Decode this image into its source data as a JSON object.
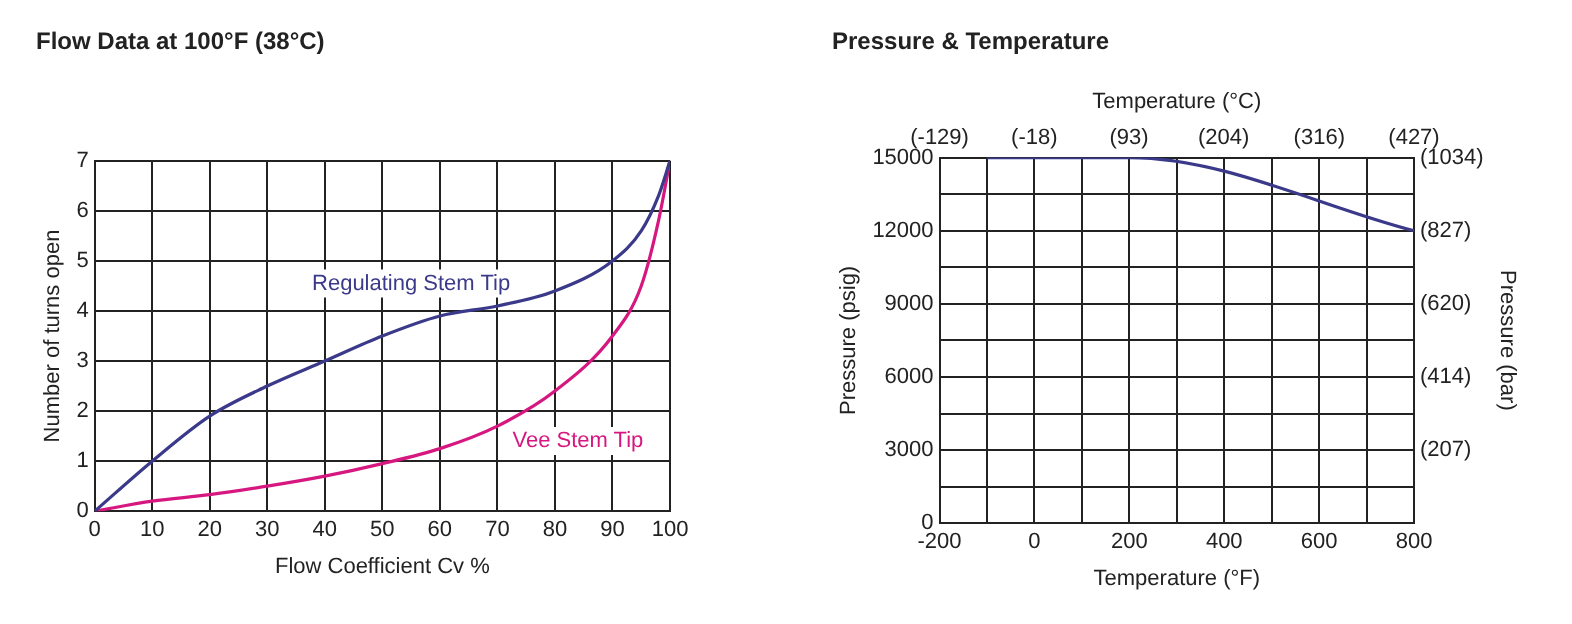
{
  "chart_data": [
    {
      "type": "line",
      "title": "Flow Data at 100°F (38°C)",
      "xlabel": "Flow Coefficient Cv %",
      "ylabel": "Number of turns open",
      "xlim": [
        0,
        100
      ],
      "xticks": [
        0,
        10,
        20,
        30,
        40,
        50,
        60,
        70,
        80,
        90,
        100
      ],
      "ylim": [
        0,
        7
      ],
      "yticks": [
        0,
        1,
        2,
        3,
        4,
        5,
        6,
        7
      ],
      "grid": true,
      "legend": false,
      "marker": "none",
      "series": [
        {
          "name": "Regulating Stem Tip",
          "color": "#3b3a8a",
          "x": [
            0,
            10,
            20,
            30,
            40,
            50,
            60,
            70,
            80,
            90,
            95,
            98,
            100
          ],
          "values": [
            0,
            1,
            1.9,
            2.5,
            3,
            3.5,
            3.9,
            4.1,
            4.4,
            5,
            5.6,
            6.3,
            7
          ]
        },
        {
          "name": "Vee Stem Tip",
          "color": "#d6177f",
          "x": [
            0,
            10,
            20,
            30,
            40,
            50,
            60,
            70,
            80,
            90,
            95,
            98,
            100
          ],
          "values": [
            0,
            0.2,
            0.33,
            0.5,
            0.7,
            0.95,
            1.25,
            1.7,
            2.4,
            3.5,
            4.5,
            5.8,
            7
          ]
        }
      ]
    },
    {
      "type": "line",
      "title": "Pressure & Temperature",
      "xlabel": "Temperature (°F)",
      "x2label": "Temperature (°C)",
      "ylabel": "Pressure (psig)",
      "y2label": "Pressure (bar)",
      "xlim": [
        -200,
        800
      ],
      "xticks": [
        -200,
        {
          "value": -100,
          "label": null
        },
        0,
        {
          "value": 100,
          "label": null
        },
        200,
        {
          "value": 300,
          "label": null
        },
        400,
        {
          "value": 500,
          "label": null
        },
        600,
        {
          "value": 700,
          "label": null
        },
        800
      ],
      "x2lim": [
        -129,
        427
      ],
      "x2ticks": [
        {
          "value": -129,
          "label": "(-129)"
        },
        {
          "value": -18,
          "label": "(-18)"
        },
        {
          "value": 93,
          "label": "(93)"
        },
        {
          "value": 204,
          "label": "(204)"
        },
        {
          "value": 316,
          "label": "(316)"
        },
        {
          "value": 427,
          "label": "(427)"
        }
      ],
      "ylim": [
        0,
        15000
      ],
      "yticks": [
        0,
        {
          "value": 1500,
          "label": null
        },
        3000,
        {
          "value": 4500,
          "label": null
        },
        6000,
        {
          "value": 7500,
          "label": null
        },
        9000,
        {
          "value": 10500,
          "label": null
        },
        12000,
        {
          "value": 13500,
          "label": null
        },
        15000
      ],
      "y2lim": [
        0,
        1034
      ],
      "y2ticks": [
        {
          "value": 207,
          "label": "(207)"
        },
        {
          "value": 414,
          "label": "(414)"
        },
        {
          "value": 620,
          "label": "(620)"
        },
        {
          "value": 827,
          "label": "(827)"
        },
        {
          "value": 1034,
          "label": "(1034)"
        }
      ],
      "grid": true,
      "legend": false,
      "marker": "none",
      "series": [
        {
          "color": "#3b3a8a",
          "x": [
            -100,
            200,
            800
          ],
          "values": [
            15000,
            15000,
            12000
          ]
        }
      ]
    }
  ]
}
